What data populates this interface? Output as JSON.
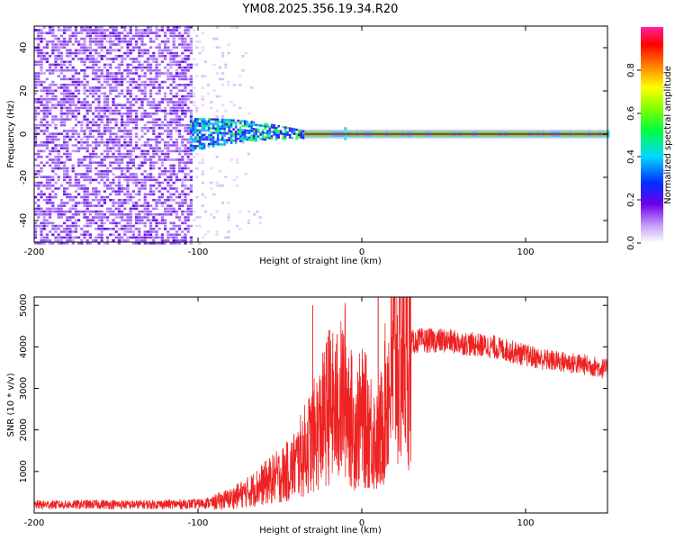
{
  "title": "YM08.2025.356.19.34.R20",
  "colors": {
    "snr_line": "#ee2222",
    "signal_center": "#e0203a",
    "background": "#ffffff"
  },
  "chart_data": [
    {
      "type": "heatmap",
      "name": "spectrogram",
      "xlabel": "Height of straight line (km)",
      "ylabel": "Frequency (Hz)",
      "xlim": [
        -200,
        150
      ],
      "ylim": [
        -50,
        50
      ],
      "xticks": [
        -200,
        -100,
        0,
        100
      ],
      "xtick_labels": [
        "-200",
        "-100",
        "0",
        "100"
      ],
      "yticks": [
        -40,
        -20,
        0,
        20,
        40
      ],
      "ytick_labels": [
        "-40",
        "-20",
        "0",
        "20",
        "40"
      ],
      "grid": false,
      "description_regions": [
        {
          "x_range": [
            -200,
            -105
          ],
          "amplitude": 0.15,
          "pattern": "broadband noise"
        },
        {
          "x_range": [
            -105,
            -35
          ],
          "amplitude": 0.35,
          "pattern": "narrowing band near 0 Hz"
        },
        {
          "x_range": [
            -35,
            150
          ],
          "amplitude": 0.95,
          "pattern": "strong line at 0 Hz"
        }
      ]
    },
    {
      "type": "colorbar",
      "name": "colorbar",
      "label": "Normalized spectral amplitude",
      "range": [
        0,
        1
      ],
      "ticks": [
        0.0,
        0.2,
        0.4,
        0.6,
        0.8
      ],
      "tick_labels": [
        "0.0",
        "0.2",
        "0.4",
        "0.6",
        "0.8"
      ]
    },
    {
      "type": "line",
      "name": "snr",
      "xlabel": "Height of straight line (km)",
      "ylabel": "SNR (10 * v/v)",
      "xlim": [
        -200,
        150
      ],
      "ylim": [
        0,
        5200
      ],
      "xticks": [
        -200,
        -100,
        0,
        100
      ],
      "xtick_labels": [
        "-200",
        "-100",
        "0",
        "100"
      ],
      "yticks": [
        1000,
        2000,
        3000,
        4000,
        5000
      ],
      "ytick_labels": [
        "1000",
        "2000",
        "3000",
        "4000",
        "5000"
      ],
      "grid": false,
      "series": [
        {
          "name": "SNR",
          "x": [
            -200,
            -180,
            -160,
            -140,
            -120,
            -100,
            -90,
            -80,
            -70,
            -60,
            -50,
            -45,
            -40,
            -35,
            -30,
            -25,
            -20,
            -15,
            -10,
            -5,
            0,
            5,
            10,
            15,
            20,
            25,
            30,
            35,
            40,
            50,
            60,
            70,
            80,
            90,
            100,
            110,
            120,
            130,
            140,
            150
          ],
          "y": [
            200,
            200,
            210,
            200,
            210,
            220,
            260,
            350,
            500,
            700,
            900,
            1000,
            1200,
            1500,
            1800,
            2100,
            2600,
            2400,
            3000,
            2000,
            2300,
            2100,
            1600,
            2800,
            3600,
            3900,
            4100,
            4150,
            4150,
            4150,
            4100,
            4050,
            4000,
            3900,
            3800,
            3700,
            3650,
            3600,
            3550,
            3450
          ]
        }
      ],
      "spikes": [
        {
          "x": -30,
          "y": 5000
        },
        {
          "x": -20,
          "y": 4400
        },
        {
          "x": -15,
          "y": 4300
        },
        {
          "x": 10,
          "y": 5250
        },
        {
          "x": 12,
          "y": 800
        }
      ]
    }
  ]
}
